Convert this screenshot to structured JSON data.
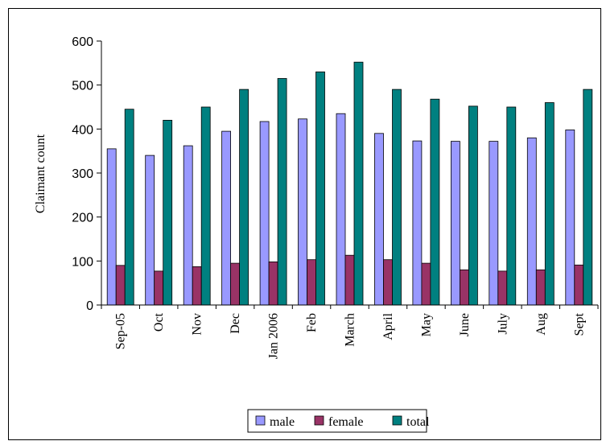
{
  "chart_data": {
    "type": "bar",
    "title": "",
    "xlabel": "",
    "ylabel": "Claimant count",
    "ylim": [
      0,
      600
    ],
    "yticks": [
      0,
      100,
      200,
      300,
      400,
      500,
      600
    ],
    "grid": false,
    "legend_position": "bottom",
    "categories": [
      "Sep-05",
      "Oct",
      "Nov",
      "Dec",
      "Jan 2006",
      "Feb",
      "March",
      "April",
      "May",
      "June",
      "July",
      "Aug",
      "Sept"
    ],
    "series": [
      {
        "name": "male",
        "color": "#9999ff",
        "values": [
          355,
          340,
          362,
          395,
          417,
          423,
          435,
          390,
          373,
          372,
          372,
          380,
          398
        ]
      },
      {
        "name": "female",
        "color": "#993366",
        "values": [
          90,
          77,
          87,
          95,
          98,
          103,
          113,
          103,
          95,
          80,
          77,
          80,
          91
        ]
      },
      {
        "name": "total",
        "color": "#008080",
        "values": [
          445,
          420,
          450,
          490,
          515,
          530,
          552,
          490,
          468,
          452,
          450,
          460,
          490
        ]
      }
    ]
  }
}
